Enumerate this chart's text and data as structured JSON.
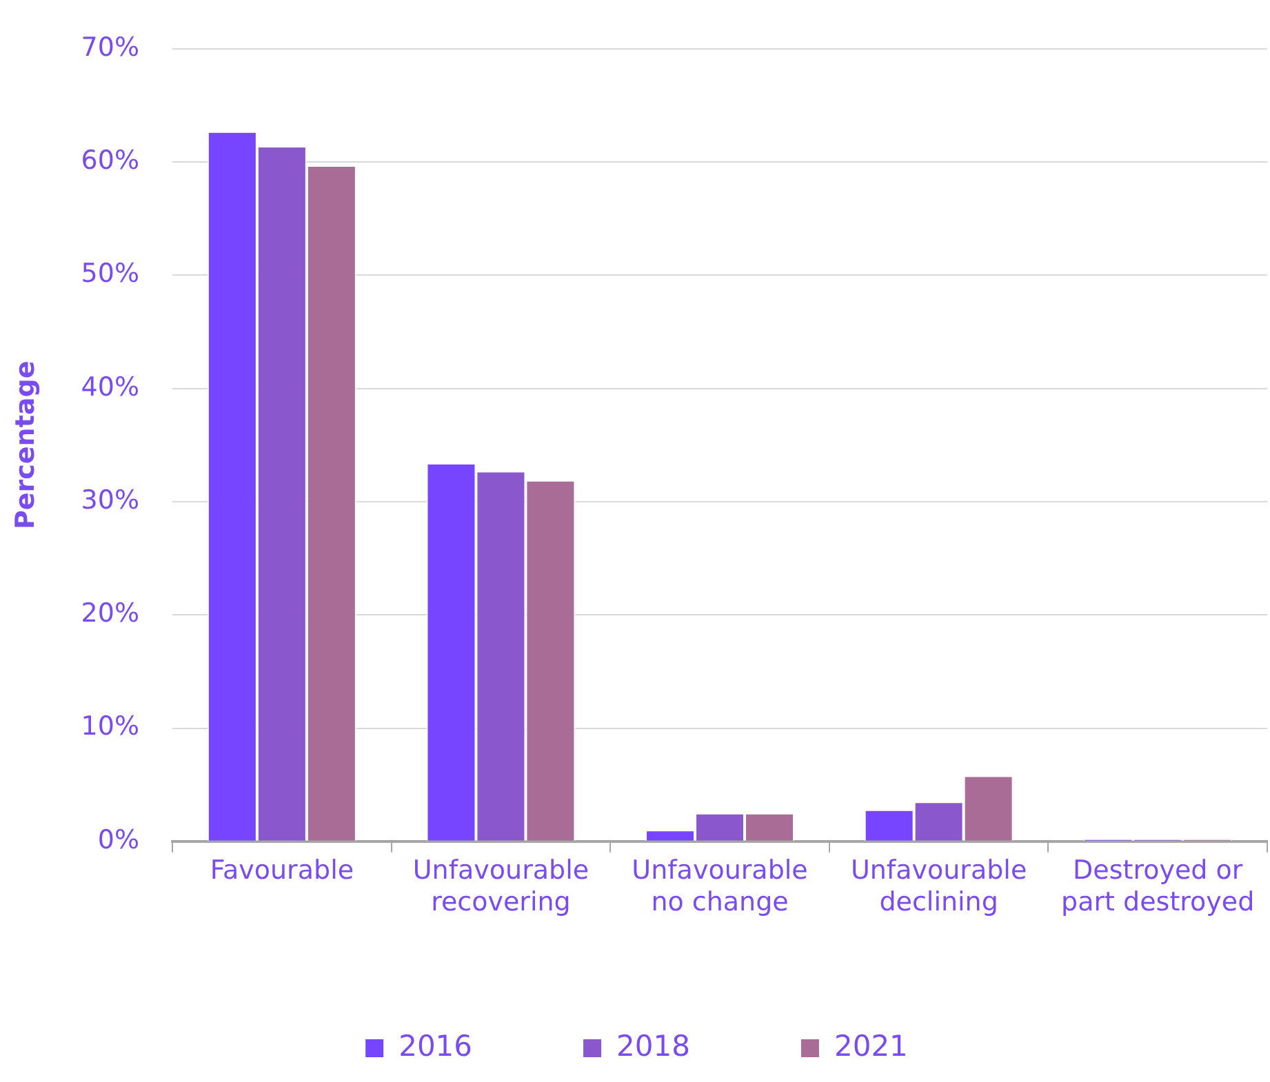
{
  "chart_data": {
    "type": "bar",
    "ylabel": "Percentage",
    "categories": [
      "Favourable",
      "Unfavourable recovering",
      "Unfavourable no change",
      "Unfavourable declining",
      "Destroyed or part destroyed"
    ],
    "series": [
      {
        "name": "2016",
        "color": "#7744ff",
        "values": [
          62.7,
          33.4,
          1.0,
          2.8,
          0.2
        ]
      },
      {
        "name": "2018",
        "color": "#8a58cc",
        "values": [
          61.4,
          32.7,
          2.5,
          3.5,
          0.2
        ]
      },
      {
        "name": "2021",
        "color": "#a86c96",
        "values": [
          59.7,
          31.9,
          2.5,
          5.8,
          0.2
        ]
      }
    ],
    "ylim": [
      0,
      70
    ],
    "yticks": [
      {
        "value": 0,
        "label": "0%"
      },
      {
        "value": 10,
        "label": "10%"
      },
      {
        "value": 20,
        "label": "20%"
      },
      {
        "value": 30,
        "label": "30%"
      },
      {
        "value": 40,
        "label": "40%"
      },
      {
        "value": 50,
        "label": "50%"
      },
      {
        "value": 60,
        "label": "60%"
      },
      {
        "value": 70,
        "label": "70%"
      }
    ],
    "grid": "y",
    "legend": "bottom"
  }
}
